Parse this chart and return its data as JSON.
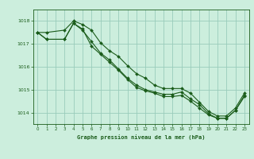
{
  "title": "Graphe pression niveau de la mer (hPa)",
  "background_color": "#cceedd",
  "grid_color": "#99ccbb",
  "line_color": "#1a5c1a",
  "marker_color": "#1a5c1a",
  "xlim": [
    -0.5,
    23.5
  ],
  "ylim": [
    1013.5,
    1018.5
  ],
  "yticks": [
    1014,
    1015,
    1016,
    1017,
    1018
  ],
  "xticks": [
    0,
    1,
    2,
    3,
    4,
    5,
    6,
    7,
    8,
    9,
    10,
    11,
    12,
    13,
    14,
    15,
    16,
    17,
    18,
    19,
    20,
    21,
    22,
    23
  ],
  "series1": {
    "x": [
      0,
      1,
      3,
      4,
      5,
      6,
      7,
      8,
      9,
      10,
      11,
      12,
      13,
      14,
      15,
      16,
      17,
      18,
      19,
      20,
      21,
      22,
      23
    ],
    "y": [
      1017.5,
      1017.5,
      1017.6,
      1018.0,
      1017.85,
      1017.6,
      1017.05,
      1016.7,
      1016.45,
      1016.05,
      1015.7,
      1015.5,
      1015.2,
      1015.05,
      1015.05,
      1015.05,
      1014.85,
      1014.45,
      1014.05,
      1013.85,
      1013.85,
      1014.2,
      1014.85
    ]
  },
  "series2": {
    "x": [
      0,
      1,
      3,
      4,
      5,
      6,
      7,
      8,
      9,
      10,
      11,
      12,
      13,
      14,
      15,
      16,
      17,
      18,
      19,
      20,
      21,
      22,
      23
    ],
    "y": [
      1017.5,
      1017.2,
      1017.2,
      1017.9,
      1017.65,
      1016.9,
      1016.55,
      1016.2,
      1015.85,
      1015.45,
      1015.1,
      1014.95,
      1014.85,
      1014.7,
      1014.7,
      1014.75,
      1014.5,
      1014.2,
      1013.9,
      1013.75,
      1013.75,
      1014.1,
      1014.75
    ]
  },
  "series3": {
    "x": [
      0,
      1,
      3,
      4,
      5,
      6,
      7,
      8,
      9,
      10,
      11,
      12,
      13,
      14,
      15,
      16,
      17,
      18,
      19,
      20,
      21,
      22,
      23
    ],
    "y": [
      1017.5,
      1017.2,
      1017.2,
      1017.9,
      1017.6,
      1017.1,
      1016.6,
      1016.3,
      1015.9,
      1015.5,
      1015.2,
      1015.0,
      1014.9,
      1014.8,
      1014.8,
      1014.9,
      1014.6,
      1014.35,
      1013.95,
      1013.75,
      1013.75,
      1014.1,
      1014.7
    ]
  }
}
